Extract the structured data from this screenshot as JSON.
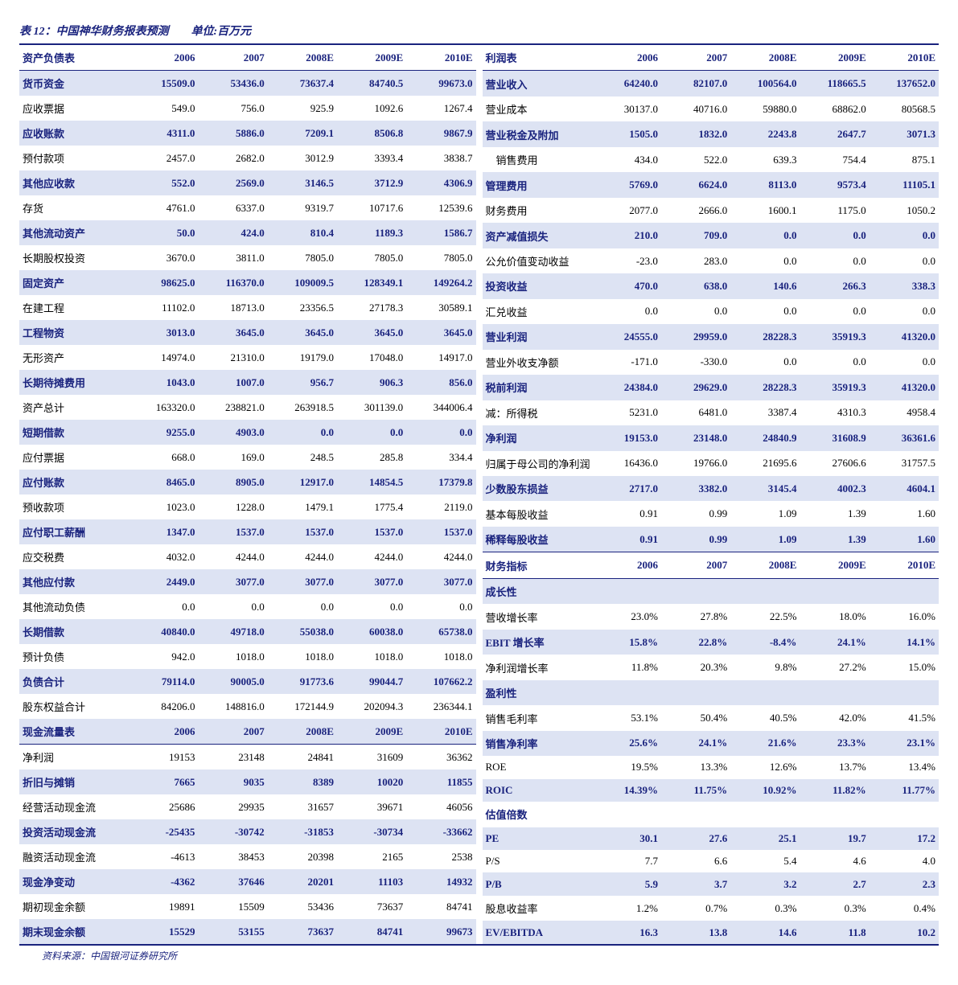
{
  "title": "表 12：中国神华财务报表预测　　单位:百万元",
  "footnote": "资料来源：中国银河证券研究所",
  "years": [
    "2006",
    "2007",
    "2008E",
    "2009E",
    "2010E"
  ],
  "left": {
    "balance_header": "资产负债表",
    "balance_rows": [
      {
        "label": "货币资金",
        "vals": [
          "15509.0",
          "53436.0",
          "73637.4",
          "84740.5",
          "99673.0"
        ],
        "stripe": true
      },
      {
        "label": "应收票据",
        "vals": [
          "549.0",
          "756.0",
          "925.9",
          "1092.6",
          "1267.4"
        ],
        "stripe": false
      },
      {
        "label": "应收账款",
        "vals": [
          "4311.0",
          "5886.0",
          "7209.1",
          "8506.8",
          "9867.9"
        ],
        "stripe": true
      },
      {
        "label": "预付款项",
        "vals": [
          "2457.0",
          "2682.0",
          "3012.9",
          "3393.4",
          "3838.7"
        ],
        "stripe": false
      },
      {
        "label": "其他应收款",
        "vals": [
          "552.0",
          "2569.0",
          "3146.5",
          "3712.9",
          "4306.9"
        ],
        "stripe": true
      },
      {
        "label": "存货",
        "vals": [
          "4761.0",
          "6337.0",
          "9319.7",
          "10717.6",
          "12539.6"
        ],
        "stripe": false
      },
      {
        "label": "其他流动资产",
        "vals": [
          "50.0",
          "424.0",
          "810.4",
          "1189.3",
          "1586.7"
        ],
        "stripe": true
      },
      {
        "label": "长期股权投资",
        "vals": [
          "3670.0",
          "3811.0",
          "7805.0",
          "7805.0",
          "7805.0"
        ],
        "stripe": false
      },
      {
        "label": "固定资产",
        "vals": [
          "98625.0",
          "116370.0",
          "109009.5",
          "128349.1",
          "149264.2"
        ],
        "stripe": true
      },
      {
        "label": "在建工程",
        "vals": [
          "11102.0",
          "18713.0",
          "23356.5",
          "27178.3",
          "30589.1"
        ],
        "stripe": false
      },
      {
        "label": "工程物资",
        "vals": [
          "3013.0",
          "3645.0",
          "3645.0",
          "3645.0",
          "3645.0"
        ],
        "stripe": true
      },
      {
        "label": "无形资产",
        "vals": [
          "14974.0",
          "21310.0",
          "19179.0",
          "17048.0",
          "14917.0"
        ],
        "stripe": false
      },
      {
        "label": "长期待摊费用",
        "vals": [
          "1043.0",
          "1007.0",
          "956.7",
          "906.3",
          "856.0"
        ],
        "stripe": true
      },
      {
        "label": "资产总计",
        "vals": [
          "163320.0",
          "238821.0",
          "263918.5",
          "301139.0",
          "344006.4"
        ],
        "stripe": false
      },
      {
        "label": "短期借款",
        "vals": [
          "9255.0",
          "4903.0",
          "0.0",
          "0.0",
          "0.0"
        ],
        "stripe": true
      },
      {
        "label": "应付票据",
        "vals": [
          "668.0",
          "169.0",
          "248.5",
          "285.8",
          "334.4"
        ],
        "stripe": false
      },
      {
        "label": "应付账款",
        "vals": [
          "8465.0",
          "8905.0",
          "12917.0",
          "14854.5",
          "17379.8"
        ],
        "stripe": true
      },
      {
        "label": "预收款项",
        "vals": [
          "1023.0",
          "1228.0",
          "1479.1",
          "1775.4",
          "2119.0"
        ],
        "stripe": false
      },
      {
        "label": "应付职工薪酬",
        "vals": [
          "1347.0",
          "1537.0",
          "1537.0",
          "1537.0",
          "1537.0"
        ],
        "stripe": true
      },
      {
        "label": "应交税费",
        "vals": [
          "4032.0",
          "4244.0",
          "4244.0",
          "4244.0",
          "4244.0"
        ],
        "stripe": false
      },
      {
        "label": "其他应付款",
        "vals": [
          "2449.0",
          "3077.0",
          "3077.0",
          "3077.0",
          "3077.0"
        ],
        "stripe": true
      },
      {
        "label": "其他流动负债",
        "vals": [
          "0.0",
          "0.0",
          "0.0",
          "0.0",
          "0.0"
        ],
        "stripe": false
      },
      {
        "label": "长期借款",
        "vals": [
          "40840.0",
          "49718.0",
          "55038.0",
          "60038.0",
          "65738.0"
        ],
        "stripe": true
      },
      {
        "label": "预计负债",
        "vals": [
          "942.0",
          "1018.0",
          "1018.0",
          "1018.0",
          "1018.0"
        ],
        "stripe": false
      },
      {
        "label": "负债合计",
        "vals": [
          "79114.0",
          "90005.0",
          "91773.6",
          "99044.7",
          "107662.2"
        ],
        "stripe": true
      },
      {
        "label": "股东权益合计",
        "vals": [
          "84206.0",
          "148816.0",
          "172144.9",
          "202094.3",
          "236344.1"
        ],
        "stripe": false
      }
    ],
    "cashflow_header": "现金流量表",
    "cashflow_rows": [
      {
        "label": "净利润",
        "vals": [
          "19153",
          "23148",
          "24841",
          "31609",
          "36362"
        ],
        "stripe": false
      },
      {
        "label": "折旧与摊销",
        "vals": [
          "7665",
          "9035",
          "8389",
          "10020",
          "11855"
        ],
        "stripe": true
      },
      {
        "label": "经营活动现金流",
        "vals": [
          "25686",
          "29935",
          "31657",
          "39671",
          "46056"
        ],
        "stripe": false
      },
      {
        "label": "投资活动现金流",
        "vals": [
          "-25435",
          "-30742",
          "-31853",
          "-30734",
          "-33662"
        ],
        "stripe": true
      },
      {
        "label": "融资活动现金流",
        "vals": [
          "-4613",
          "38453",
          "20398",
          "2165",
          "2538"
        ],
        "stripe": false
      },
      {
        "label": "现金净变动",
        "vals": [
          "-4362",
          "37646",
          "20201",
          "11103",
          "14932"
        ],
        "stripe": true
      },
      {
        "label": "期初现金余额",
        "vals": [
          "19891",
          "15509",
          "53436",
          "73637",
          "84741"
        ],
        "stripe": false
      },
      {
        "label": "期末现金余额",
        "vals": [
          "15529",
          "53155",
          "73637",
          "84741",
          "99673"
        ],
        "stripe": true
      }
    ]
  },
  "right": {
    "income_header": "利润表",
    "income_rows": [
      {
        "label": "营业收入",
        "vals": [
          "64240.0",
          "82107.0",
          "100564.0",
          "118665.5",
          "137652.0"
        ],
        "stripe": true
      },
      {
        "label": "营业成本",
        "vals": [
          "30137.0",
          "40716.0",
          "59880.0",
          "68862.0",
          "80568.5"
        ],
        "stripe": false
      },
      {
        "label": "营业税金及附加",
        "vals": [
          "1505.0",
          "1832.0",
          "2243.8",
          "2647.7",
          "3071.3"
        ],
        "stripe": true
      },
      {
        "label": "　销售费用",
        "vals": [
          "434.0",
          "522.0",
          "639.3",
          "754.4",
          "875.1"
        ],
        "stripe": false
      },
      {
        "label": "管理费用",
        "vals": [
          "5769.0",
          "6624.0",
          "8113.0",
          "9573.4",
          "11105.1"
        ],
        "stripe": true
      },
      {
        "label": "财务费用",
        "vals": [
          "2077.0",
          "2666.0",
          "1600.1",
          "1175.0",
          "1050.2"
        ],
        "stripe": false
      },
      {
        "label": "资产减值损失",
        "vals": [
          "210.0",
          "709.0",
          "0.0",
          "0.0",
          "0.0"
        ],
        "stripe": true
      },
      {
        "label": "公允价值变动收益",
        "vals": [
          "-23.0",
          "283.0",
          "0.0",
          "0.0",
          "0.0"
        ],
        "stripe": false
      },
      {
        "label": "投资收益",
        "vals": [
          "470.0",
          "638.0",
          "140.6",
          "266.3",
          "338.3"
        ],
        "stripe": true
      },
      {
        "label": "汇兑收益",
        "vals": [
          "0.0",
          "0.0",
          "0.0",
          "0.0",
          "0.0"
        ],
        "stripe": false
      },
      {
        "label": "营业利润",
        "vals": [
          "24555.0",
          "29959.0",
          "28228.3",
          "35919.3",
          "41320.0"
        ],
        "stripe": true
      },
      {
        "label": "营业外收支净额",
        "vals": [
          "-171.0",
          "-330.0",
          "0.0",
          "0.0",
          "0.0"
        ],
        "stripe": false
      },
      {
        "label": "税前利润",
        "vals": [
          "24384.0",
          "29629.0",
          "28228.3",
          "35919.3",
          "41320.0"
        ],
        "stripe": true
      },
      {
        "label": "减：所得税",
        "vals": [
          "5231.0",
          "6481.0",
          "3387.4",
          "4310.3",
          "4958.4"
        ],
        "stripe": false
      },
      {
        "label": "净利润",
        "vals": [
          "19153.0",
          "23148.0",
          "24840.9",
          "31608.9",
          "36361.6"
        ],
        "stripe": true
      },
      {
        "label": "归属于母公司的净利润",
        "vals": [
          "16436.0",
          "19766.0",
          "21695.6",
          "27606.6",
          "31757.5"
        ],
        "stripe": false
      },
      {
        "label": "少数股东损益",
        "vals": [
          "2717.0",
          "3382.0",
          "3145.4",
          "4002.3",
          "4604.1"
        ],
        "stripe": true
      },
      {
        "label": "基本每股收益",
        "vals": [
          "0.91",
          "0.99",
          "1.09",
          "1.39",
          "1.60"
        ],
        "stripe": false
      },
      {
        "label": "稀释每股收益",
        "vals": [
          "0.91",
          "0.99",
          "1.09",
          "1.39",
          "1.60"
        ],
        "stripe": true
      }
    ],
    "metrics_header": "财务指标",
    "growth_header": "成长性",
    "growth_rows": [
      {
        "label": "营收增长率",
        "vals": [
          "23.0%",
          "27.8%",
          "22.5%",
          "18.0%",
          "16.0%"
        ],
        "stripe": false
      },
      {
        "label": "EBIT 增长率",
        "vals": [
          "15.8%",
          "22.8%",
          "-8.4%",
          "24.1%",
          "14.1%"
        ],
        "stripe": true
      },
      {
        "label": "净利润增长率",
        "vals": [
          "11.8%",
          "20.3%",
          "9.8%",
          "27.2%",
          "15.0%"
        ],
        "stripe": false
      }
    ],
    "profit_header": "盈利性",
    "profit_rows": [
      {
        "label": "销售毛利率",
        "vals": [
          "53.1%",
          "50.4%",
          "40.5%",
          "42.0%",
          "41.5%"
        ],
        "stripe": false
      },
      {
        "label": "销售净利率",
        "vals": [
          "25.6%",
          "24.1%",
          "21.6%",
          "23.3%",
          "23.1%"
        ],
        "stripe": true
      },
      {
        "label": "ROE",
        "vals": [
          "19.5%",
          "13.3%",
          "12.6%",
          "13.7%",
          "13.4%"
        ],
        "stripe": false
      },
      {
        "label": "ROIC",
        "vals": [
          "14.39%",
          "11.75%",
          "10.92%",
          "11.82%",
          "11.77%"
        ],
        "stripe": true
      }
    ],
    "val_header": "估值倍数",
    "val_rows": [
      {
        "label": "PE",
        "vals": [
          "30.1",
          "27.6",
          "25.1",
          "19.7",
          "17.2"
        ],
        "stripe": true
      },
      {
        "label": "P/S",
        "vals": [
          "7.7",
          "6.6",
          "5.4",
          "4.6",
          "4.0"
        ],
        "stripe": false
      },
      {
        "label": "P/B",
        "vals": [
          "5.9",
          "3.7",
          "3.2",
          "2.7",
          "2.3"
        ],
        "stripe": true
      },
      {
        "label": "股息收益率",
        "vals": [
          "1.2%",
          "0.7%",
          "0.3%",
          "0.3%",
          "0.4%"
        ],
        "stripe": false
      },
      {
        "label": "EV/EBITDA",
        "vals": [
          "16.3",
          "13.8",
          "14.6",
          "11.8",
          "10.2"
        ],
        "stripe": true
      }
    ]
  }
}
